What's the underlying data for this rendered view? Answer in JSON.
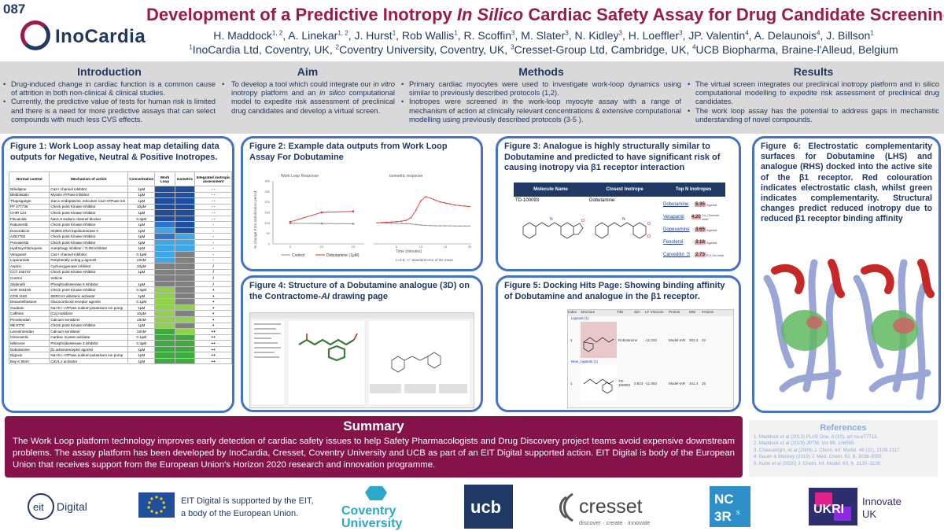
{
  "header": {
    "poster_number": "087",
    "logo_text": "InoCardia",
    "title_part1": "Development of a Predictive Inotropy ",
    "title_italic": "In Silico",
    "title_part2": " Cardiac Safety Assay for Drug Candidate Screening",
    "authors": [
      {
        "name": "H. Maddock",
        "sup": "1, 2"
      },
      {
        "name": "A. Linekar",
        "sup": "1, 2"
      },
      {
        "name": "J. Hurst",
        "sup": "1"
      },
      {
        "name": "Rob Wallis",
        "sup": "1"
      },
      {
        "name": "R. Scoffin",
        "sup": "3"
      },
      {
        "name": "M. Slater",
        "sup": "3"
      },
      {
        "name": "N. Kidley",
        "sup": "3"
      },
      {
        "name": "H. Loeffler",
        "sup": "3"
      },
      {
        "name": "JP. Valentin",
        "sup": "4"
      },
      {
        "name": "A. Delaunois",
        "sup": "4"
      },
      {
        "name": "J. Billson",
        "sup": "1"
      }
    ],
    "affiliations": [
      {
        "sup": "1",
        "text": "InoCardia Ltd, Coventry, UK"
      },
      {
        "sup": "2",
        "text": "Coventry University, Coventry, UK"
      },
      {
        "sup": "3",
        "text": "Cresset-Group Ltd, Cambridge, UK"
      },
      {
        "sup": "4",
        "text": "UCB Biopharma, Braine-l'Alleud, Belgium"
      }
    ]
  },
  "intro": {
    "title": "Introduction",
    "bullets": [
      "Drug-induced change in cardiac function is a common cause of attrition in both non-clinical & clinical studies.",
      "Currently, the predictive value of tests for human risk is limited and there is a need for more predictive assays that can select compounds with much less CVS effects."
    ]
  },
  "aim": {
    "title": "Aim",
    "text_a": "To develop a tool which could integrate our ",
    "text_b": "in vitro",
    "text_c": " inotropy platform and an ",
    "text_d": "in silico",
    "text_e": " computational model to expedite risk assessment of preclinical drug candidates and develop a virtual screen."
  },
  "methods": {
    "title": "Methods",
    "bullets": [
      "Primary cardiac myocytes were used to investigate work-loop dynamics using similar to previously described protocols (1,2).",
      "Inotropes were screened in the work-loop myocyte assay with a range of mechanism of action at clinically relevant concentrations & extensive computational modelling using previously described protocols (3-5 )."
    ]
  },
  "results": {
    "title": "Results",
    "bullets": [
      "The virtual screen integrates our preclinical inotropy platform and in silico computational modelling to expedite risk assessment of preclinical drug candidates.",
      "The work loop assay has the potential to address gaps in mechanistic understanding of novel compounds."
    ]
  },
  "fig1": {
    "caption": "Figure 1: Work Loop assay heat map detailing data outputs for Negative, Neutral & Positive Inotropes.",
    "headers": [
      "Normal control",
      "Mechanism of action",
      "Concentration",
      "Work Loop",
      "Isometric",
      "Integrated inotropic assessment"
    ],
    "rows": [
      [
        "Nifedipine",
        "Ca2+ channel inhibitor",
        "1µM",
        "- -"
      ],
      [
        "Blebbistatin",
        "Myosin ATPase inhibitor",
        "1µM",
        "- -"
      ],
      [
        "Thapsigargin",
        "Sarco endoplasmic reticulum Ca2+ATPase inh",
        "1µM",
        "- -"
      ],
      [
        "PF 477736",
        "Check point Kinase Inhibitor",
        "10µM",
        "- -"
      ],
      [
        "CHIR 124",
        "Check point Kinase Inhibitor",
        "1µM",
        "- -"
      ],
      [
        "Flecainide",
        "Nav1.5 sodium channel blocker",
        "0.3µM",
        "- -"
      ],
      [
        "Rabusertib",
        "Check point Kinase Inhibitor",
        "1µM",
        "-"
      ],
      [
        "Doxorubicin",
        "Inhibits DNA topoisomerase II",
        "1µM",
        "-"
      ],
      [
        "AZD7762",
        "Check point Kinase Inhibitor",
        "1µM",
        "-"
      ],
      [
        "Prexasertib",
        "Check point Kinase Inhibitor",
        "1µM",
        "-"
      ],
      [
        "Hydroxychloroquine",
        "Autophagy inhibitor / TLR9 inhibitor",
        "1µM",
        "-"
      ],
      [
        "Verapamil",
        "Ca2+ channel inhibitor",
        "0.1µM",
        "-"
      ],
      [
        "Loperamide",
        "Peripherally acting µ agonist",
        "10nM",
        "-"
      ],
      [
        "Aspirin",
        "Cyclooxygenase inhibitor",
        "10µM",
        "/"
      ],
      [
        "CCT 245737",
        "Check point Kinase Inhibitor",
        "1µM",
        "/"
      ],
      [
        "Control",
        "Vehicle",
        "",
        "/"
      ],
      [
        "Sildenafil",
        "Phosphodiesterase 5 inhibitor",
        "1µM",
        "/"
      ],
      [
        "SAR 020106",
        "Check point Kinase Inhibitor",
        "0.3µM",
        "+"
      ],
      [
        "CDN 1163",
        "SERCA2 allosteric activator",
        "1µM",
        "+"
      ],
      [
        "Dexamethasone",
        "Glucocorticoid receptor agonist",
        "0.1µM",
        "+"
      ],
      [
        "Ouabain",
        "Na+/K+-ATPase sodium-potassium ion pump",
        "1µM",
        "+"
      ],
      [
        "Caffeine",
        "[Ca] mobilizer",
        "10µM",
        "+"
      ],
      [
        "Pimobendan",
        "Calcium sensitizer",
        "10nM",
        "+"
      ],
      [
        "Mk 8776",
        "Check point Kinase Inhibitor",
        "1µM",
        "+"
      ],
      [
        "Levosimendan",
        "Calcium sensitiser",
        "10nM",
        "++"
      ],
      [
        "Omecamtiv",
        "Cardiac myosin activator",
        "0.1µM",
        "++"
      ],
      [
        "Milrinone",
        "Phosphodiesterase 3 inhibitor",
        "0.3µM",
        "++"
      ],
      [
        "Dobutamine",
        "β1 adrenoreceptor agonist",
        "1µM",
        "++"
      ],
      [
        "Digoxin",
        "Na+/K+-ATPase sodium-potassium ion pump",
        "1µM",
        "++"
      ],
      [
        "Bay K 8644",
        "CaV1.x activator",
        "1µM",
        "++"
      ]
    ],
    "heat_colors": {
      "dark_blue": "#1f4e9c",
      "mid_blue": "#2f75c8",
      "light_blue": "#41a6e6",
      "grey": "#808080",
      "light_green": "#92d050",
      "green": "#3faa3f"
    },
    "heat": [
      [
        "dark_blue",
        "dark_blue"
      ],
      [
        "dark_blue",
        "dark_blue"
      ],
      [
        "dark_blue",
        "dark_blue"
      ],
      [
        "dark_blue",
        "dark_blue"
      ],
      [
        "dark_blue",
        "dark_blue"
      ],
      [
        "dark_blue",
        "dark_blue"
      ],
      [
        "mid_blue",
        "dark_blue"
      ],
      [
        "light_blue",
        "dark_blue"
      ],
      [
        "mid_blue",
        "light_blue"
      ],
      [
        "light_blue",
        "light_blue"
      ],
      [
        "light_blue",
        "light_blue"
      ],
      [
        "light_blue",
        "grey"
      ],
      [
        "light_blue",
        "grey"
      ],
      [
        "grey",
        "grey"
      ],
      [
        "grey",
        "grey"
      ],
      [
        "grey",
        "grey"
      ],
      [
        "grey",
        "grey"
      ],
      [
        "light_green",
        "grey"
      ],
      [
        "light_green",
        "grey"
      ],
      [
        "light_green",
        "grey"
      ],
      [
        "light_green",
        "light_green"
      ],
      [
        "light_green",
        "grey"
      ],
      [
        "light_green",
        "light_green"
      ],
      [
        "light_green",
        "grey"
      ],
      [
        "green",
        "light_green"
      ],
      [
        "green",
        "green"
      ],
      [
        "green",
        "green"
      ],
      [
        "green",
        "green"
      ],
      [
        "green",
        "green"
      ],
      [
        "green",
        "green"
      ]
    ]
  },
  "fig2": {
    "caption": "Figure 2: Example data outputs from Work Loop Assay For Dobutamine",
    "panel_left_title": "Work Loop Response",
    "panel_right_title": "Isometric response",
    "ylabel": "% change from stabilization period",
    "xlabel": "Time (minutes)",
    "legend_control": "Control",
    "legend_dobutamine": "Dobutamine (1µM)",
    "footnote": "n=4-6; +/- Standard error of the mean",
    "colors": {
      "control": "#8c8c8c",
      "dobutamine": "#e03030"
    }
  },
  "chart_data": [
    {
      "type": "line",
      "title": "Work Loop Response",
      "xlabel": "",
      "ylabel": "% change from stabilization period",
      "ylim": [
        0,
        300
      ],
      "yticks": [
        0,
        50,
        100,
        150,
        200,
        250,
        300
      ],
      "x": [
        5,
        10,
        15
      ],
      "series": [
        {
          "name": "Dobutamine (1µM)",
          "values": [
            105,
            150,
            155
          ]
        },
        {
          "name": "Control",
          "values": [
            98,
            97,
            96
          ]
        }
      ]
    },
    {
      "type": "line",
      "title": "Isometric response",
      "xlabel": "Time (minutes)",
      "ylabel": "",
      "ylim": [
        0,
        300
      ],
      "x": [
        1,
        2,
        3,
        4,
        5,
        6,
        7,
        8,
        9,
        10,
        11,
        12,
        13,
        14,
        15,
        16,
        17,
        18,
        19,
        20
      ],
      "xticks": [
        5,
        10,
        15,
        20
      ],
      "series": [
        {
          "name": "Dobutamine (1µM)",
          "values": [
            100,
            102,
            103,
            104,
            106,
            108,
            112,
            125,
            160,
            205,
            225,
            218,
            208,
            200,
            195,
            190,
            185,
            182,
            180,
            178
          ]
        },
        {
          "name": "Control",
          "values": [
            100,
            100,
            99,
            99,
            98,
            97,
            96,
            95,
            92,
            90,
            88,
            87,
            86,
            86,
            86,
            86,
            85,
            85,
            85,
            85
          ]
        }
      ]
    }
  ],
  "fig3": {
    "caption": "Figure 3: Analogue is highly structurally similar to Dobutamine and predicted to have significant risk of causing inotropy via β1 receptor interaction",
    "headers": [
      "Molecule Name",
      "Closest Inotrope",
      "Top N Inotropes"
    ],
    "molecule": "TD-100093",
    "closest": "Dobutamine",
    "top": [
      {
        "name": "Dobutamine",
        "score": "5.35",
        "role": "Agonist"
      },
      {
        "name": "Verapamil",
        "score": "4.20",
        "role": "Ca_Channel inhib"
      },
      {
        "name": "Dopexamine",
        "score": "3.65",
        "role": "Agonist"
      },
      {
        "name": "Fenoterol",
        "score": "3.16",
        "role": "Agonist"
      },
      {
        "name": "Carvedilol_S",
        "score": "2.73",
        "role": "B & Gs inhib"
      }
    ]
  },
  "fig4": {
    "caption_a": "Figure 4: Structure of a Dobutamine analogue (3D) on the Contractome-",
    "caption_b": "AI",
    "caption_c": " drawing page"
  },
  "fig5": {
    "caption": "Figure 5: Docking Hits Page: Showing binding affinity of Dobutamine and analogue in the β1 receptor.",
    "columns": [
      "Index",
      "Structure",
      "Title",
      "Sim",
      "LF VSscore",
      "Protein",
      "MW",
      "#Atoms"
    ],
    "group1": "Ligands (1)",
    "group2": "New_Ligands (1)",
    "row1": [
      "1",
      "",
      "Dobutamine",
      "",
      "-11.222",
      "Model-tAR",
      "302.4",
      "22"
    ],
    "row2": [
      "1",
      "",
      "TD-100093",
      "0.823",
      "-11.063",
      "Model-tAR",
      "341.4",
      "25"
    ]
  },
  "fig6": {
    "caption": "Figure 6: Electrostatic complementarity surfaces for Dobutamine (LHS) and analogue (RHS) docked into the active site of the β1 receptor. Red colouration indicates electrostatic clash, whilst green indicates complementarity. Structural changes predict reduced inotropy due to reduced β1 receptor binding affinity"
  },
  "summary": {
    "title": "Summary",
    "text": "The Work Loop platform technology improves early detection of cardiac safety issues to help Safety Pharmacologists and Drug Discovery project teams avoid expensive downstream problems. The assay platform has been developed by InoCardia, Cresset, Coventry University and UCB as part of an EIT Digital supported action. EIT Digital is body of the European Union that receives support from the European Union's Horizon 2020 research and innovation programme."
  },
  "references": {
    "title": "References",
    "items": [
      "1. Maddock et al (2013) PLoS One. 8 (10), art.no.e77713.",
      "2. Maddock et al (2019) JPTM, Vol 99, 106595",
      "3. Cheeseright, et al (2006) J. Chem. Inf. Model. 46 (11), 2108-2117.",
      "4. Bauer & Mackey (2019) J. Med. Chem. 62, 6, 3036-3050;",
      "5. Kuhn et al (2020) J. Chem. Inf. Model. 60, 6, 3120–3130"
    ]
  },
  "logos": {
    "eit": "Digital",
    "eu_line1": "EIT Digital is supported by the EIT,",
    "eu_line2": "a body of the European Union.",
    "coventry_1": "Coventry",
    "coventry_2": "University",
    "ucb": "ucb",
    "cresset": "cresset",
    "cresset_tag": "discover · create · innovate",
    "nc3rs_1": "NC",
    "nc3rs_2": "3R",
    "nc3rs_s": "s",
    "ukri": "UKRI",
    "innovate_1": "Innovate",
    "innovate_2": "UK"
  },
  "colors": {
    "title": "#9b1b4a",
    "navy": "#1f3864",
    "box_border": "#4472c4",
    "summary_bg": "#85134a",
    "band_bg": "#d9d9d9"
  }
}
